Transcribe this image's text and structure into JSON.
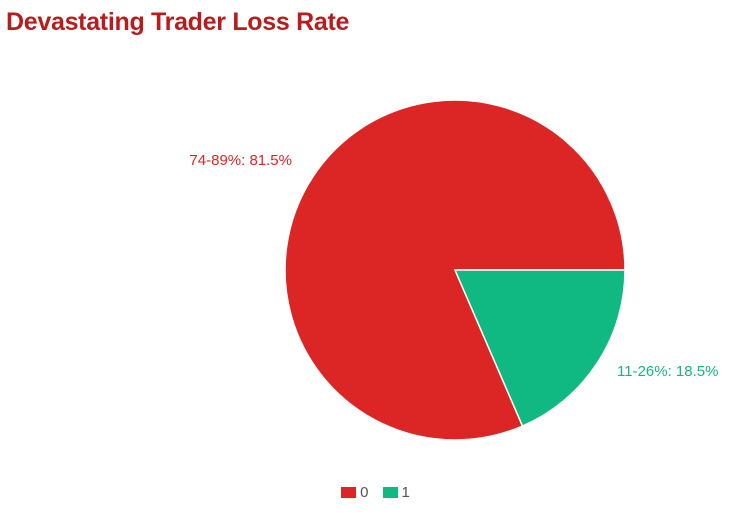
{
  "chart_data": {
    "type": "pie",
    "title": "Devastating Trader Loss Rate",
    "slices": [
      {
        "label": "74-89%",
        "value": 81.5,
        "display": "74-89%: 81.5%",
        "color": "#dc2626",
        "legend": "0"
      },
      {
        "label": "11-26%",
        "value": 18.5,
        "display": "11-26%: 18.5%",
        "color": "#10b981",
        "legend": "1"
      }
    ],
    "legend_position": "bottom-center"
  }
}
